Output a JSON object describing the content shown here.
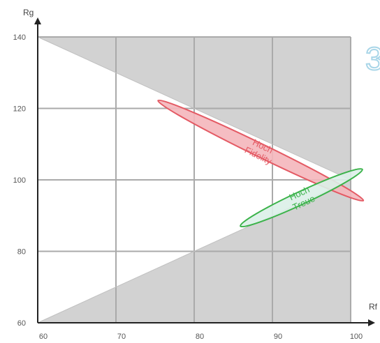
{
  "chart_data": {
    "type": "scatter",
    "xlabel": "Rf",
    "ylabel": "Rg",
    "xlim": [
      60,
      100
    ],
    "ylim": [
      60,
      140
    ],
    "x_ticks": [
      "60",
      "70",
      "80",
      "90",
      "100"
    ],
    "y_ticks": [
      "60",
      "80",
      "100",
      "120",
      "140"
    ],
    "grid": true,
    "gamut_boundary": [
      [
        60,
        140
      ],
      [
        100,
        100
      ],
      [
        60,
        60
      ]
    ],
    "regions": [
      {
        "label_lines": [
          "Hoch",
          "Fidelity"
        ],
        "center": [
          88.5,
          108.2
        ],
        "semi_axes": [
          14.6,
          1.84
        ],
        "angle_deg": 26,
        "color": "#e45a64",
        "fill": "#f4b6bb"
      },
      {
        "label_lines": [
          "Hoch",
          "Treue"
        ],
        "center": [
          93.7,
          95
        ],
        "semi_axes": [
          8.6,
          1.8
        ],
        "angle_deg": -25,
        "color": "#3bb34a",
        "fill": "#dcefe8"
      }
    ],
    "partial_text": "3",
    "colors": {
      "shade": "#d2d2d2",
      "grid": "#aaaaaa",
      "axis": "#222222",
      "partial": "#a9d6e8"
    }
  }
}
